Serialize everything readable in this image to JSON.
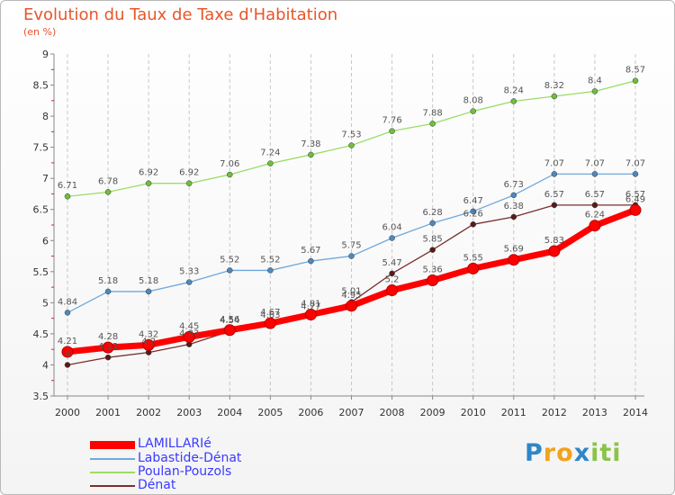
{
  "chart_data": {
    "type": "line",
    "title": "Evolution du Taux de Taxe d'Habitation",
    "unit_label": "(en %)",
    "x": [
      "2000",
      "2001",
      "2002",
      "2003",
      "2004",
      "2005",
      "2006",
      "2007",
      "2008",
      "2009",
      "2010",
      "2011",
      "2012",
      "2013",
      "2014"
    ],
    "ylim": [
      3.5,
      9
    ],
    "yticks": [
      "3.5",
      "4",
      "4.5",
      "5",
      "5.5",
      "6",
      "6.5",
      "7",
      "7.5",
      "8",
      "8.5",
      "9"
    ],
    "grid": "vertical dashed",
    "legend_placement": "bottom-left",
    "series": [
      {
        "name": "Poulan-Pouzols",
        "color": "#99dd66",
        "values": [
          6.71,
          6.78,
          6.92,
          6.92,
          7.06,
          7.24,
          7.38,
          7.53,
          7.76,
          7.88,
          8.08,
          8.24,
          8.32,
          8.4,
          8.57
        ]
      },
      {
        "name": "Labastide-Dénat",
        "color": "#6fa8dc",
        "values": [
          4.84,
          5.18,
          5.18,
          5.33,
          5.52,
          5.52,
          5.67,
          5.75,
          6.04,
          6.28,
          6.47,
          6.73,
          7.07,
          7.07,
          7.07
        ]
      },
      {
        "name": "Dénat",
        "color": "#7a2e2e",
        "values": [
          4.0,
          4.12,
          4.2,
          4.33,
          4.54,
          4.63,
          4.77,
          5.01,
          5.47,
          5.85,
          6.26,
          6.38,
          6.57,
          6.57,
          6.57
        ]
      },
      {
        "name": "LAMILLARIé",
        "color": "#ff0000",
        "values": [
          4.21,
          4.28,
          4.32,
          4.45,
          4.56,
          4.67,
          4.81,
          4.95,
          5.2,
          5.36,
          5.55,
          5.69,
          5.83,
          6.24,
          6.49
        ]
      }
    ],
    "data_labels": [
      [
        "6.71",
        "6.78",
        "6.92",
        "6.92",
        "7.06",
        "7.24",
        "7.38",
        "7.53",
        "7.76",
        "7.88",
        "8.08",
        "8.24",
        "8.32",
        "8.4",
        "8.57"
      ],
      [
        "4.84",
        "5.18",
        "5.18",
        "5.33",
        "5.52",
        "5.52",
        "5.67",
        "5.75",
        "6.04",
        "6.28",
        "6.47",
        "6.73",
        "7.07",
        "7.07",
        "7.07"
      ],
      [
        "4",
        "4.12",
        "4.2",
        "4.33",
        "4.54",
        "4.63",
        "4.77",
        "5.01",
        "5.47",
        "5.85",
        "6.26",
        "6.38",
        "6.57",
        "6.57",
        "6.57"
      ],
      [
        "4.21",
        "4.28",
        "4.32",
        "4.45",
        "4.56",
        "4.67",
        "4.81",
        "4.95",
        "5.2",
        "5.36",
        "5.55",
        "5.69",
        "5.83",
        "6.24",
        "6.49"
      ]
    ]
  },
  "legend": [
    {
      "label": "LAMILLARIé",
      "color": "#ff0000"
    },
    {
      "label": "Labastide-Dénat",
      "color": "#6fa8dc"
    },
    {
      "label": "Poulan-Pouzols",
      "color": "#99dd66"
    },
    {
      "label": "Dénat",
      "color": "#7a2e2e"
    }
  ],
  "logo": {
    "text": "Proxiti",
    "letters": [
      "P",
      "r",
      "o",
      "x",
      "i",
      "t",
      "i"
    ],
    "colors": [
      "#2f86c8",
      "#f2a31b",
      "#f2a31b",
      "#2f86c8",
      "#8bc34a",
      "#8bc34a",
      "#8bc34a"
    ]
  }
}
